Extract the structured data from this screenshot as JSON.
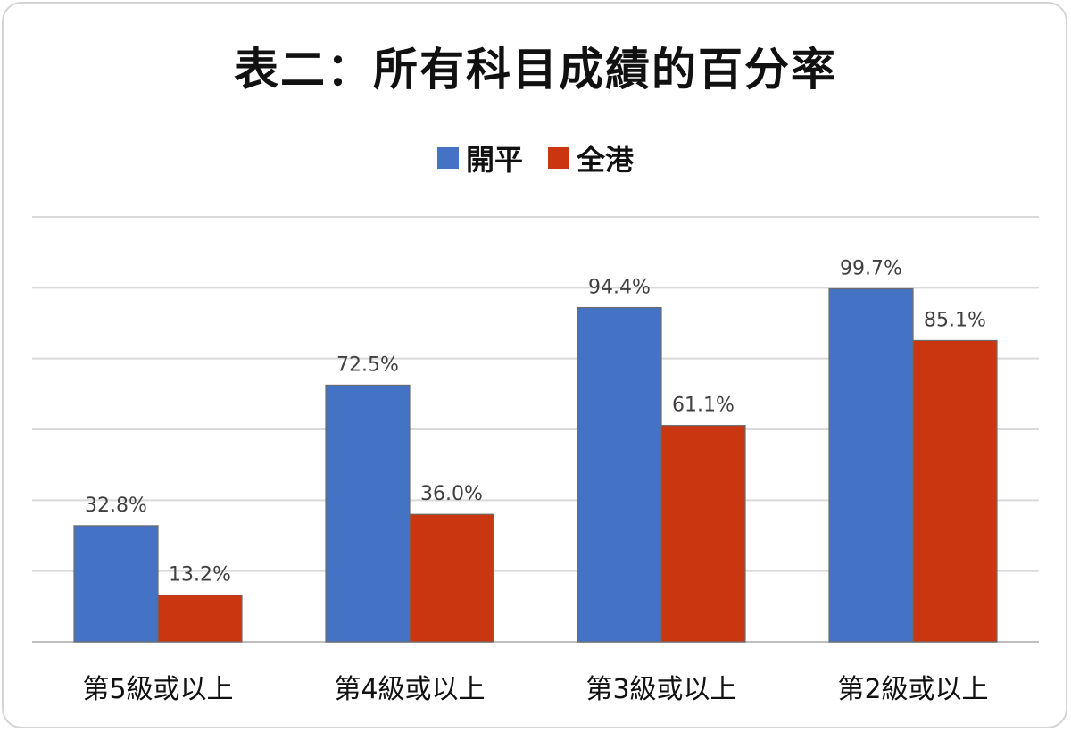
{
  "chart_data": {
    "type": "bar",
    "title": "表二：所有科目成績的百分率",
    "categories": [
      "第5級或以上",
      "第4級或以上",
      "第3級或以上",
      "第2級或以上"
    ],
    "series": [
      {
        "name": "開平",
        "color": "#4472c4",
        "values": [
          32.8,
          72.5,
          94.4,
          99.7
        ]
      },
      {
        "name": "全港",
        "color": "#c9360f",
        "values": [
          13.2,
          36.0,
          61.1,
          85.1
        ]
      }
    ],
    "data_labels": [
      [
        "32.8%",
        "72.5%",
        "94.4%",
        "99.7%"
      ],
      [
        "13.2%",
        "36.0%",
        "61.1%",
        "85.1%"
      ]
    ],
    "ylim": [
      0,
      120
    ],
    "grid": true,
    "legend_position": "top-center",
    "xlabel": "",
    "ylabel": ""
  }
}
